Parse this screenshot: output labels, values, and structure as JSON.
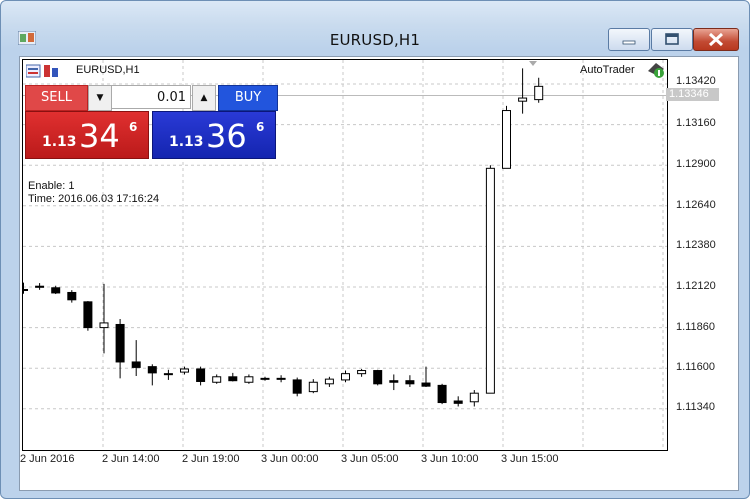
{
  "window": {
    "title": "EURUSD,H1"
  },
  "chart": {
    "symbol_label": "EURUSD,H1",
    "expert_label": "AutoTrader",
    "current_price_label": "1.13346",
    "info": {
      "enable": "Enable: 1",
      "time": "Time: 2016.06.03 17:16:24"
    },
    "y_ticks": [
      "1.13420",
      "1.13160",
      "1.12900",
      "1.12640",
      "1.12380",
      "1.12120",
      "1.11860",
      "1.11600",
      "1.11340"
    ],
    "x_ticks": [
      "2 Jun 2016",
      "2 Jun 14:00",
      "2 Jun 19:00",
      "3 Jun 00:00",
      "3 Jun 05:00",
      "3 Jun 10:00",
      "3 Jun 15:00"
    ]
  },
  "trade_panel": {
    "sell_label": "SELL",
    "buy_label": "BUY",
    "lot_value": "0.01",
    "sell_price": {
      "small": "1.13",
      "big": "34",
      "sup": "6"
    },
    "buy_price": {
      "small": "1.13",
      "big": "36",
      "sup": "6"
    }
  },
  "chart_data": {
    "type": "candlestick",
    "ylim": [
      1.1318,
      1.1352
    ],
    "candles": [
      {
        "o": 1.12104,
        "h": 1.12148,
        "l": 1.12077,
        "c": 1.12104
      },
      {
        "o": 1.12125,
        "h": 1.12145,
        "l": 1.12102,
        "c": 1.12118
      },
      {
        "o": 1.12115,
        "h": 1.12128,
        "l": 1.12075,
        "c": 1.12082
      },
      {
        "o": 1.12085,
        "h": 1.121,
        "l": 1.1202,
        "c": 1.12038
      },
      {
        "o": 1.12025,
        "h": 1.1203,
        "l": 1.1184,
        "c": 1.1186
      },
      {
        "o": 1.1186,
        "h": 1.1214,
        "l": 1.11695,
        "c": 1.1189
      },
      {
        "o": 1.1188,
        "h": 1.11915,
        "l": 1.11535,
        "c": 1.1164
      },
      {
        "o": 1.1164,
        "h": 1.1178,
        "l": 1.1155,
        "c": 1.11605
      },
      {
        "o": 1.1161,
        "h": 1.11625,
        "l": 1.1149,
        "c": 1.1157
      },
      {
        "o": 1.1156,
        "h": 1.1159,
        "l": 1.11525,
        "c": 1.11565
      },
      {
        "o": 1.11575,
        "h": 1.1161,
        "l": 1.1156,
        "c": 1.11595
      },
      {
        "o": 1.11595,
        "h": 1.1161,
        "l": 1.1149,
        "c": 1.11515
      },
      {
        "o": 1.1151,
        "h": 1.1156,
        "l": 1.115,
        "c": 1.11545
      },
      {
        "o": 1.11545,
        "h": 1.1157,
        "l": 1.11515,
        "c": 1.1152
      },
      {
        "o": 1.1151,
        "h": 1.1156,
        "l": 1.115,
        "c": 1.11545
      },
      {
        "o": 1.11535,
        "h": 1.11545,
        "l": 1.1152,
        "c": 1.1153
      },
      {
        "o": 1.11535,
        "h": 1.11555,
        "l": 1.1151,
        "c": 1.11535
      },
      {
        "o": 1.11525,
        "h": 1.1154,
        "l": 1.1142,
        "c": 1.1144
      },
      {
        "o": 1.1145,
        "h": 1.1153,
        "l": 1.1144,
        "c": 1.1151
      },
      {
        "o": 1.115,
        "h": 1.11545,
        "l": 1.1148,
        "c": 1.1153
      },
      {
        "o": 1.11525,
        "h": 1.11585,
        "l": 1.1151,
        "c": 1.11565
      },
      {
        "o": 1.11565,
        "h": 1.11595,
        "l": 1.11545,
        "c": 1.11585
      },
      {
        "o": 1.11585,
        "h": 1.1159,
        "l": 1.1149,
        "c": 1.115
      },
      {
        "o": 1.1152,
        "h": 1.1156,
        "l": 1.1146,
        "c": 1.1151
      },
      {
        "o": 1.1152,
        "h": 1.11555,
        "l": 1.1148,
        "c": 1.115
      },
      {
        "o": 1.11505,
        "h": 1.1161,
        "l": 1.1148,
        "c": 1.11485
      },
      {
        "o": 1.1149,
        "h": 1.115,
        "l": 1.1137,
        "c": 1.1138
      },
      {
        "o": 1.1139,
        "h": 1.1142,
        "l": 1.11355,
        "c": 1.11375
      },
      {
        "o": 1.11385,
        "h": 1.1146,
        "l": 1.11355,
        "c": 1.1144
      },
      {
        "o": 1.1144,
        "h": 1.129,
        "l": 1.1144,
        "c": 1.1288
      },
      {
        "o": 1.1288,
        "h": 1.1328,
        "l": 1.1288,
        "c": 1.1325
      },
      {
        "o": 1.1331,
        "h": 1.1352,
        "l": 1.1323,
        "c": 1.1333
      },
      {
        "o": 1.1332,
        "h": 1.1346,
        "l": 1.133,
        "c": 1.13405
      }
    ]
  }
}
